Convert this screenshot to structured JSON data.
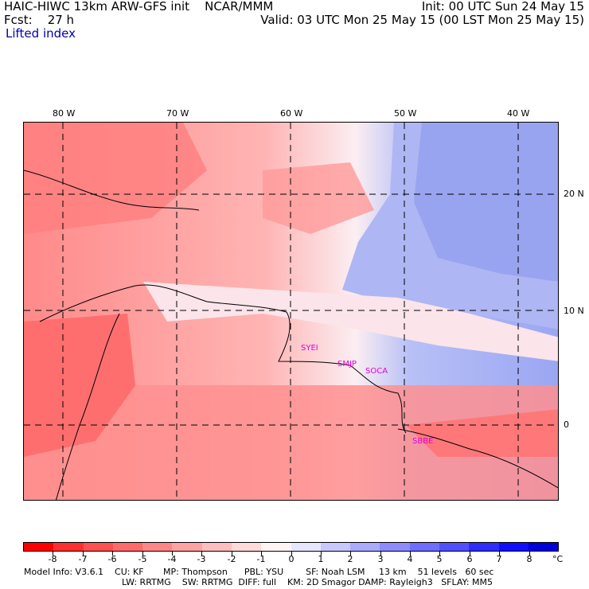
{
  "header": {
    "title_left": "HAIC-HIWC 13km ARW-GFS init    NCAR/MMM",
    "fcst": "Fcst:    27 h",
    "field": "Lifted index",
    "init": "Init: 00 UTC Sun 24 May 15",
    "valid": "Valid: 03 UTC Mon 25 May 15 (00 LST Mon 25 May 15)"
  },
  "axes": {
    "lon_labels": [
      "80 W",
      "70 W",
      "60 W",
      "50 W",
      "40 W"
    ],
    "lat_labels": [
      "20 N",
      "10 N",
      "0"
    ]
  },
  "stations": [
    "SYEI",
    "SMJP",
    "SOCA",
    "SBBE"
  ],
  "colorbar": {
    "labels": [
      "-8",
      "-7",
      "-6",
      "-5",
      "-4",
      "-3",
      "-2",
      "-1",
      "0",
      "1",
      "2",
      "3",
      "4",
      "5",
      "6",
      "7",
      "8"
    ],
    "unit": "°C",
    "colors": [
      "#ff0000",
      "#ff2f2f",
      "#ff5050",
      "#ff6a6a",
      "#ff8686",
      "#ffa2a2",
      "#ffbebe",
      "#ffdada",
      "#fff4f4",
      "#e6e6ff",
      "#c8c8ff",
      "#aaaaff",
      "#8c8cff",
      "#6e6eff",
      "#5050ff",
      "#2e2eff",
      "#1010ff",
      "#0000d8"
    ]
  },
  "model_info": {
    "line1": "Model Info: V3.6.1    CU: KF       MP: Thompson      PBL: YSU        SF: Noah LSM     13 km    51 levels   60 sec",
    "line2": "LW: RRTMG    SW: RRTMG  DIFF: full    KM: 2D Smagor DAMP: Rayleigh3   SFLAY: MM5"
  }
}
